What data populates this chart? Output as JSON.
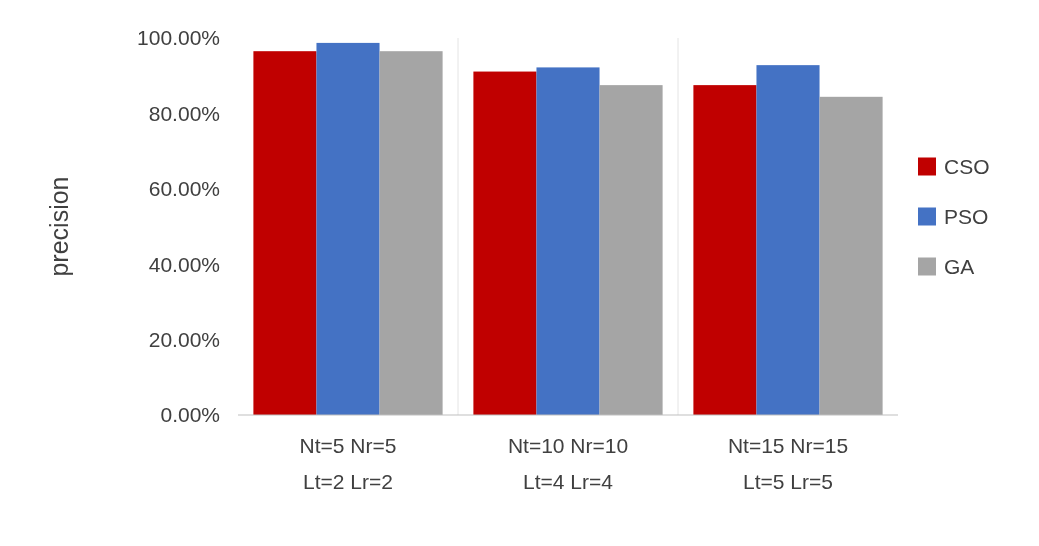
{
  "chart_data": {
    "type": "bar",
    "ylabel": "precision",
    "categories": [
      "Nt=5 Nr=5 Lt=2 Lr=2",
      "Nt=10 Nr=10 Lt=4 Lr=4",
      "Nt=15 Nr=15 Lt=5 Lr=5"
    ],
    "series": [
      {
        "name": "CSO",
        "color": "#c00000",
        "values": [
          96.5,
          91.1,
          87.5
        ]
      },
      {
        "name": "PSO",
        "color": "#4472c4",
        "values": [
          98.7,
          92.2,
          92.8
        ]
      },
      {
        "name": "GA",
        "color": "#a5a5a5",
        "values": [
          96.5,
          87.5,
          84.4
        ]
      }
    ],
    "ylim": [
      0,
      100
    ],
    "yticks": [
      {
        "value": 0,
        "label": "0.00%"
      },
      {
        "value": 20,
        "label": "20.00%"
      },
      {
        "value": 40,
        "label": "40.00%"
      },
      {
        "value": 60,
        "label": "60.00%"
      },
      {
        "value": 80,
        "label": "80.00%"
      },
      {
        "value": 100,
        "label": "100.00%"
      }
    ],
    "grid": "x",
    "legend": "right"
  }
}
